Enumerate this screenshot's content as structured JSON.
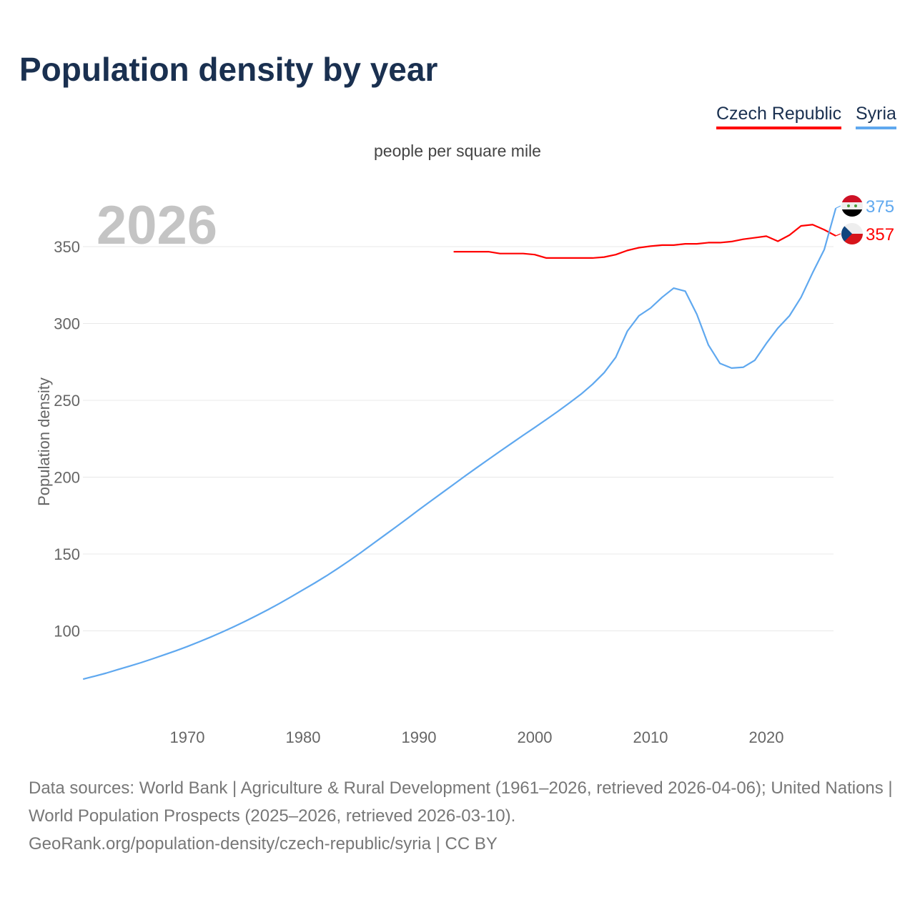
{
  "chart_data": {
    "type": "line",
    "title": "Population density by year",
    "subtitle": "people per square mile",
    "ylabel": "Population density",
    "year_label": "2026",
    "ylim": [
      50,
      380
    ],
    "xlim": [
      1961,
      2026
    ],
    "yticks": [
      100,
      150,
      200,
      250,
      300,
      350
    ],
    "xticks": [
      1970,
      1980,
      1990,
      2000,
      2010,
      2020
    ],
    "legend_position": "top-right",
    "series": [
      {
        "name": "Czech Republic",
        "color": "#ff0000",
        "end_label": "357",
        "flag": "czech-flag",
        "x": [
          1993,
          1994,
          1995,
          1996,
          1997,
          1998,
          1999,
          2000,
          2001,
          2002,
          2003,
          2004,
          2005,
          2006,
          2007,
          2008,
          2009,
          2010,
          2011,
          2012,
          2013,
          2014,
          2015,
          2016,
          2017,
          2018,
          2019,
          2020,
          2021,
          2022,
          2023,
          2024,
          2025,
          2026
        ],
        "values": [
          346.7,
          346.7,
          346.7,
          346.7,
          345.5,
          345.5,
          345.5,
          344.8,
          342.6,
          342.6,
          342.6,
          342.6,
          342.6,
          343.2,
          344.8,
          347.5,
          349.3,
          350.3,
          351,
          351,
          351.8,
          351.8,
          352.6,
          352.6,
          353.3,
          354.8,
          355.8,
          356.8,
          353.5,
          357.5,
          363.5,
          364.3,
          361,
          357
        ]
      },
      {
        "name": "Syria",
        "color": "#5fa8ef",
        "end_label": "375",
        "flag": "syria-flag",
        "x": [
          1961,
          1962,
          1963,
          1964,
          1965,
          1966,
          1967,
          1968,
          1969,
          1970,
          1971,
          1972,
          1973,
          1974,
          1975,
          1976,
          1977,
          1978,
          1979,
          1980,
          1981,
          1982,
          1983,
          1984,
          1985,
          1986,
          1987,
          1988,
          1989,
          1990,
          1991,
          1992,
          1993,
          1994,
          1995,
          1996,
          1997,
          1998,
          1999,
          2000,
          2001,
          2002,
          2003,
          2004,
          2005,
          2006,
          2007,
          2008,
          2009,
          2010,
          2011,
          2012,
          2013,
          2014,
          2015,
          2016,
          2017,
          2018,
          2019,
          2020,
          2021,
          2022,
          2023,
          2024,
          2025,
          2026
        ],
        "values": [
          68.6,
          70.5,
          72.5,
          74.8,
          77,
          79.3,
          81.8,
          84.4,
          87,
          89.8,
          92.8,
          95.9,
          99.2,
          102.6,
          106.2,
          110,
          113.9,
          118,
          122.3,
          126.7,
          131.1,
          135.7,
          140.6,
          145.7,
          151,
          156.5,
          162,
          167.5,
          173.1,
          178.8,
          184.3,
          189.8,
          195.3,
          200.8,
          206.2,
          211.5,
          216.8,
          222,
          227.2,
          232.3,
          237.5,
          242.8,
          248.3,
          254,
          260.5,
          268,
          278,
          295,
          305,
          310,
          317,
          323,
          321,
          306,
          286,
          274,
          271,
          271.5,
          276,
          287,
          297,
          305,
          317,
          333,
          348,
          375
        ]
      }
    ]
  },
  "footer": {
    "line1": "Data sources: World Bank | Agriculture & Rural Development (1961–2026, retrieved 2026-04-06); United Nations | World Population Prospects (2025–2026, retrieved 2026-03-10).",
    "line2": "GeoRank.org/population-density/czech-republic/syria | CC BY"
  }
}
